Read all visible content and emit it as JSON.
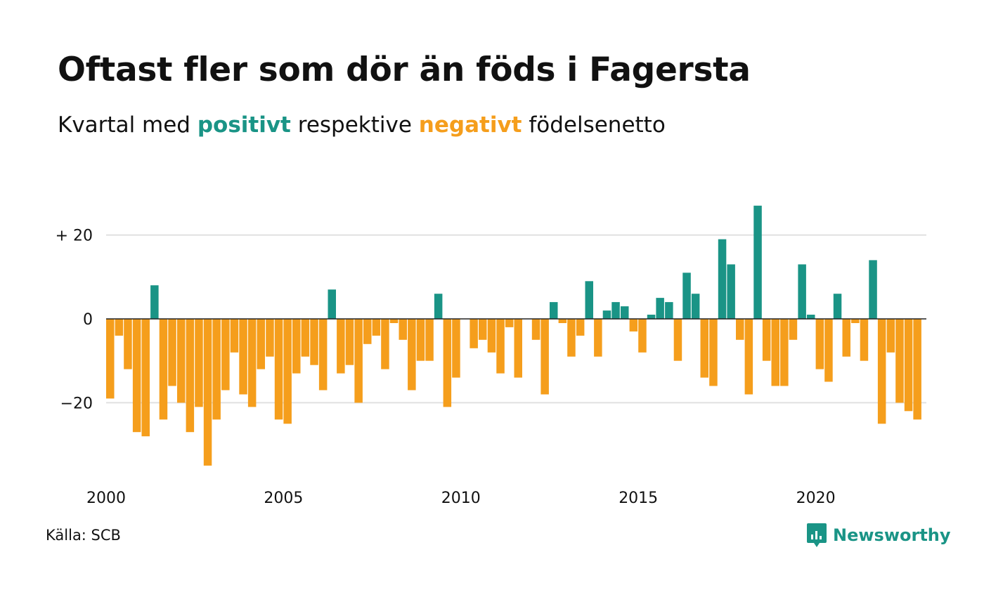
{
  "title": "Oftast fler som dör än föds i Fagersta",
  "subtitle": {
    "prefix": "Kvartal med",
    "positive_word": "positivt",
    "middle": "respektive",
    "negative_word": "negativt",
    "suffix": "födelsenetto"
  },
  "colors": {
    "positive": "#1a9486",
    "negative": "#f59e1c",
    "gridline": "#e0e0e0",
    "baseline": "#222222",
    "brand": "#1a9486"
  },
  "source": "Källa: SCB",
  "brand": {
    "name": "Newsworthy",
    "icon": "newsworthy-chart-bubble-icon"
  },
  "chart_data": {
    "type": "bar",
    "title": "Oftast fler som dör än föds i Fagersta",
    "subtitle": "Kvartal med positivt respektive negativt födelsenetto",
    "x_start": 2000,
    "x_ticks": [
      2000,
      2005,
      2010,
      2015,
      2020
    ],
    "y_ticks": [
      {
        "value": 20,
        "label": "+ 20"
      },
      {
        "value": 0,
        "label": "0"
      },
      {
        "value": -20,
        "label": "−20"
      }
    ],
    "ylim": [
      -38,
      29
    ],
    "grid": true,
    "legend": "none",
    "series": [
      {
        "values": [
          -19,
          -4,
          -12,
          -27,
          -28,
          8,
          -24,
          -16,
          -20,
          -27,
          -21,
          -35,
          -24,
          -17,
          -8,
          -18,
          -21,
          -12,
          -9,
          -24,
          -25,
          -13,
          -9,
          -11,
          -17,
          7,
          -13,
          -11,
          -20,
          -6,
          -4,
          -12,
          -1,
          -5,
          -17,
          -10,
          -10,
          6,
          -21,
          -14,
          0,
          -7,
          -5,
          -8,
          -13,
          -2,
          -14,
          0,
          -5,
          -18,
          4,
          -1,
          -9,
          -4,
          9,
          -9,
          2,
          4,
          3,
          -3,
          -8,
          1,
          5,
          4,
          -10,
          11,
          6,
          -14,
          -16,
          19,
          13,
          -5,
          -18,
          27,
          -10,
          -16,
          -16,
          -5,
          13,
          1,
          -12,
          -15,
          6,
          -9,
          -1,
          -10,
          14,
          -25,
          -8,
          -20,
          -22,
          -24
        ]
      }
    ]
  }
}
